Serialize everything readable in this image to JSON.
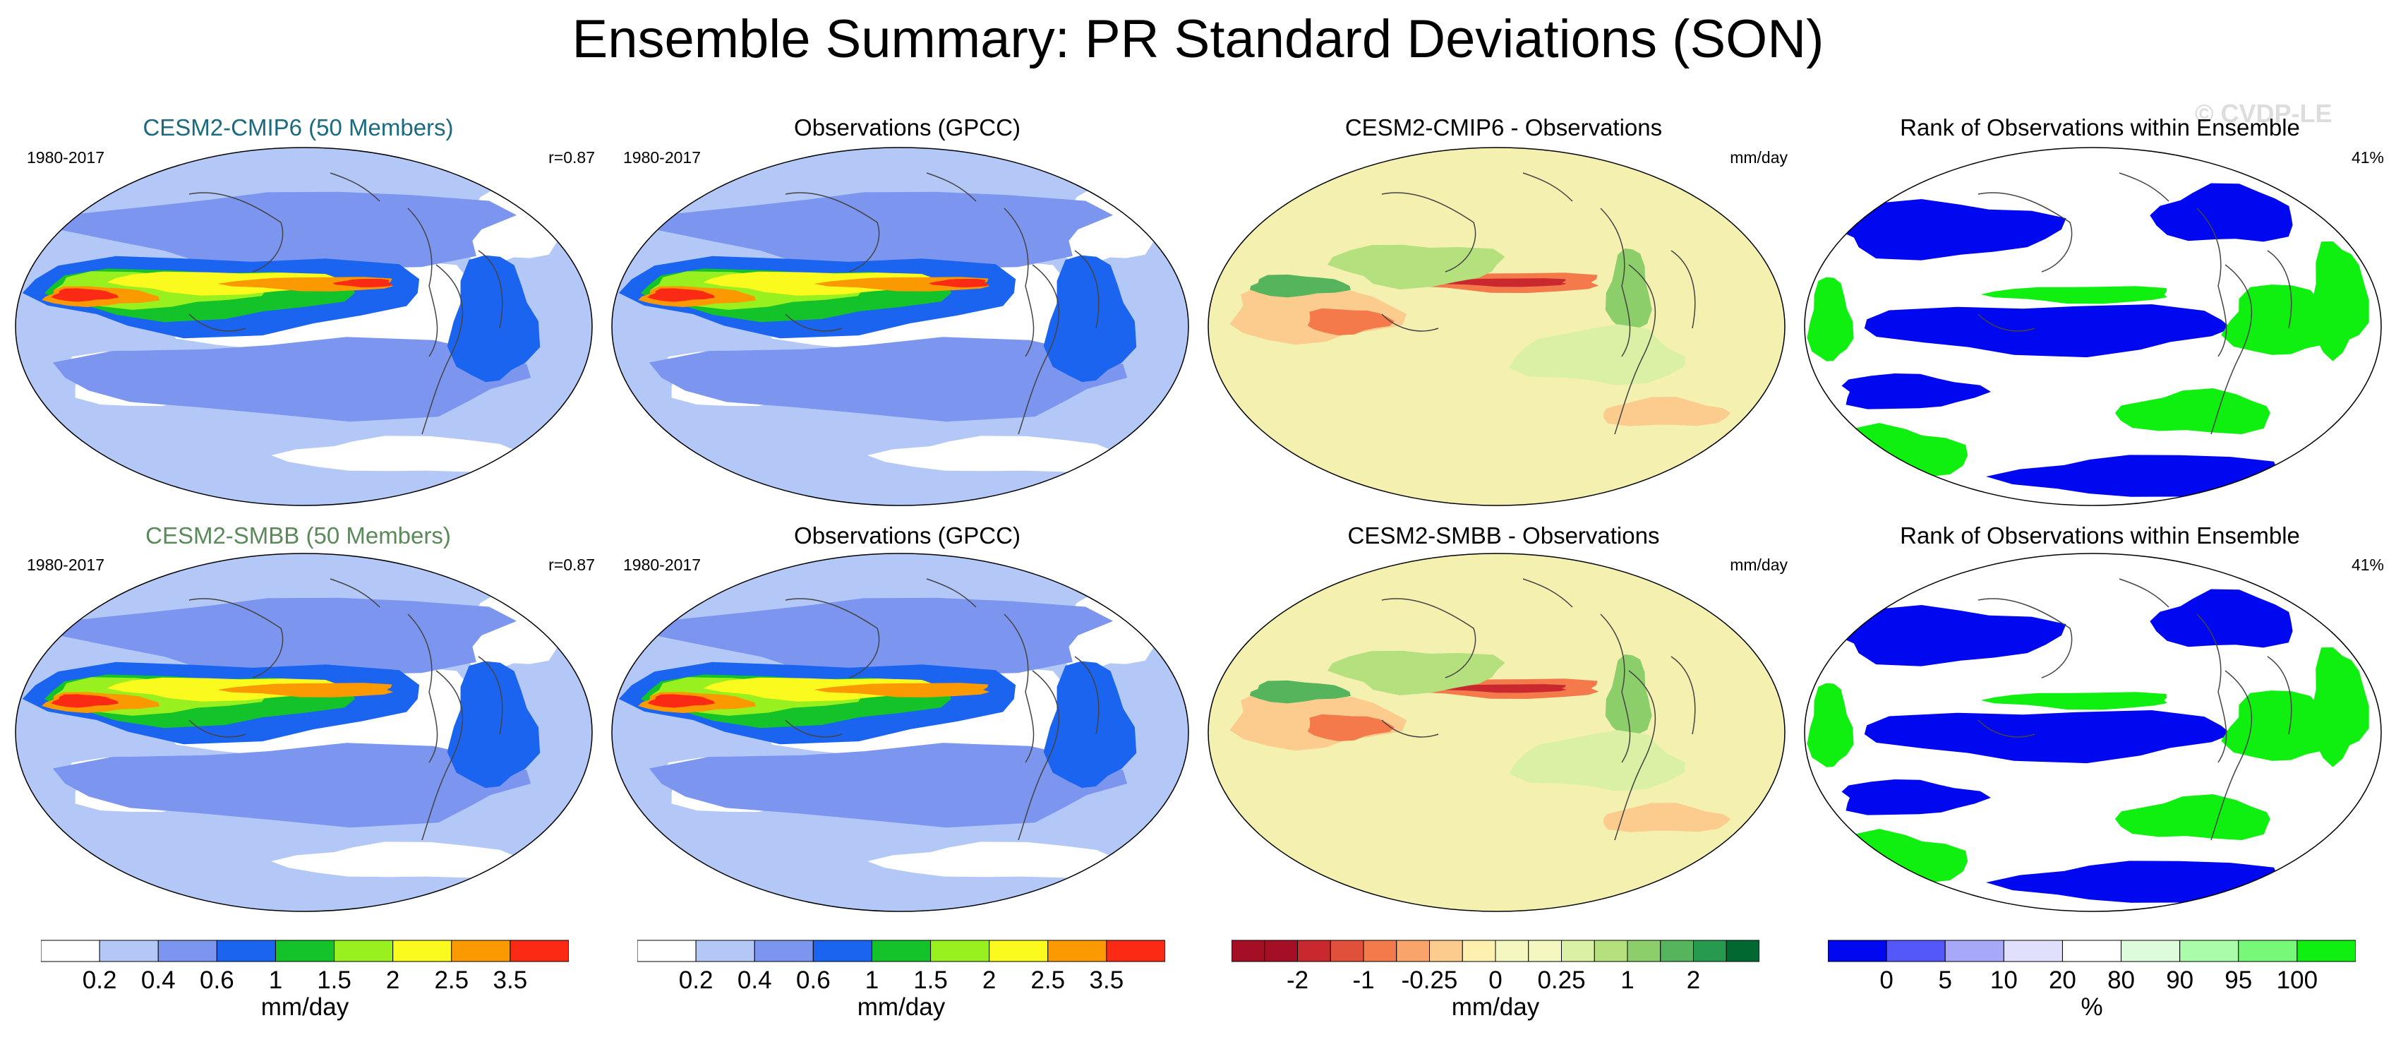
{
  "title": "Ensemble Summary: PR Standard Deviations (SON)",
  "watermark": "© CVDP-LE",
  "colors": {
    "precip_scale": [
      "#ffffff",
      "#b4c8f8",
      "#7c96f0",
      "#1a64f0",
      "#14c22a",
      "#98f01e",
      "#fafa1e",
      "#fa9a00",
      "#fa2a14"
    ],
    "diff_scale": [
      "#a50f26",
      "#c8282e",
      "#e0503a",
      "#f47a4c",
      "#f8a46a",
      "#fccc8e",
      "#fef0ae",
      "#f4f8c0",
      "#daf0a4",
      "#b4e07e",
      "#8cce6a",
      "#56b45c",
      "#279a50",
      "#006830"
    ],
    "rank_scale": [
      "#0008f0",
      "#5458f8",
      "#a8a8f8",
      "#e0e0fc",
      "#ffffff",
      "#dcfcdc",
      "#aafcaa",
      "#78f878",
      "#10f010"
    ],
    "cmip6_title": "#1a6a80",
    "smbb_title": "#5a8a5a",
    "ocean_precip": "#b4c8f8",
    "ocean_diff": "#f4f0b0",
    "ocean_rank": "#ffffff"
  },
  "rows": [
    {
      "panels": [
        {
          "title": "CESM2-CMIP6 (50 Members)",
          "left_label": "1980-2017",
          "right_label": "r=0.87",
          "kind": "precip"
        },
        {
          "title": "Observations (GPCC)",
          "left_label": "1980-2017",
          "right_label": "",
          "kind": "precip"
        },
        {
          "title": "CESM2-CMIP6 - Observations",
          "left_label": "",
          "right_label": "mm/day",
          "kind": "diff"
        },
        {
          "title": "Rank of Observations within Ensemble",
          "left_label": "",
          "right_label": "41%",
          "kind": "rank"
        }
      ]
    },
    {
      "panels": [
        {
          "title": "CESM2-SMBB (50 Members)",
          "left_label": "1980-2017",
          "right_label": "r=0.87",
          "kind": "precip"
        },
        {
          "title": "Observations (GPCC)",
          "left_label": "1980-2017",
          "right_label": "",
          "kind": "precip"
        },
        {
          "title": "CESM2-SMBB - Observations",
          "left_label": "",
          "right_label": "mm/day",
          "kind": "diff"
        },
        {
          "title": "Rank of Observations within Ensemble",
          "left_label": "",
          "right_label": "41%",
          "kind": "rank"
        }
      ]
    }
  ],
  "colorbars": [
    {
      "label": "mm/day",
      "n_boxes": 9,
      "scale": "precip_scale",
      "ticks": [
        "0.2",
        "0.4",
        "0.6",
        "1",
        "1.5",
        "2",
        "2.5",
        "3.5"
      ]
    },
    {
      "label": "mm/day",
      "n_boxes": 9,
      "scale": "precip_scale",
      "ticks": [
        "0.2",
        "0.4",
        "0.6",
        "1",
        "1.5",
        "2",
        "2.5",
        "3.5"
      ]
    },
    {
      "label": "mm/day",
      "n_boxes": 16,
      "scale": "diff_scale",
      "ticks": [
        "-2",
        "-1",
        "-0.25",
        "0",
        "0.25",
        "1",
        "2"
      ]
    },
    {
      "label": "%",
      "n_boxes": 9,
      "scale": "rank_scale",
      "ticks": [
        "0",
        "5",
        "10",
        "20",
        "80",
        "90",
        "95",
        "100"
      ]
    }
  ],
  "chart_data": {
    "type": "heatmap",
    "title": "Ensemble Summary: PR Standard Deviations (SON)",
    "season": "SON",
    "period": "1980-2017",
    "variable": "PR standard deviation",
    "units": "mm/day",
    "pattern_correlation": {
      "CESM2-CMIP6": 0.87,
      "CESM2-SMBB": 0.87
    },
    "rank_percent": {
      "CESM2-CMIP6": 41,
      "CESM2-SMBB": 41
    },
    "precip_levels": [
      0.2,
      0.4,
      0.6,
      1,
      1.5,
      2,
      2.5,
      3.5
    ],
    "diff_levels": [
      -2,
      -1,
      -0.25,
      0,
      0.25,
      1,
      2
    ],
    "rank_levels": [
      0,
      5,
      10,
      20,
      80,
      90,
      95,
      100
    ]
  }
}
